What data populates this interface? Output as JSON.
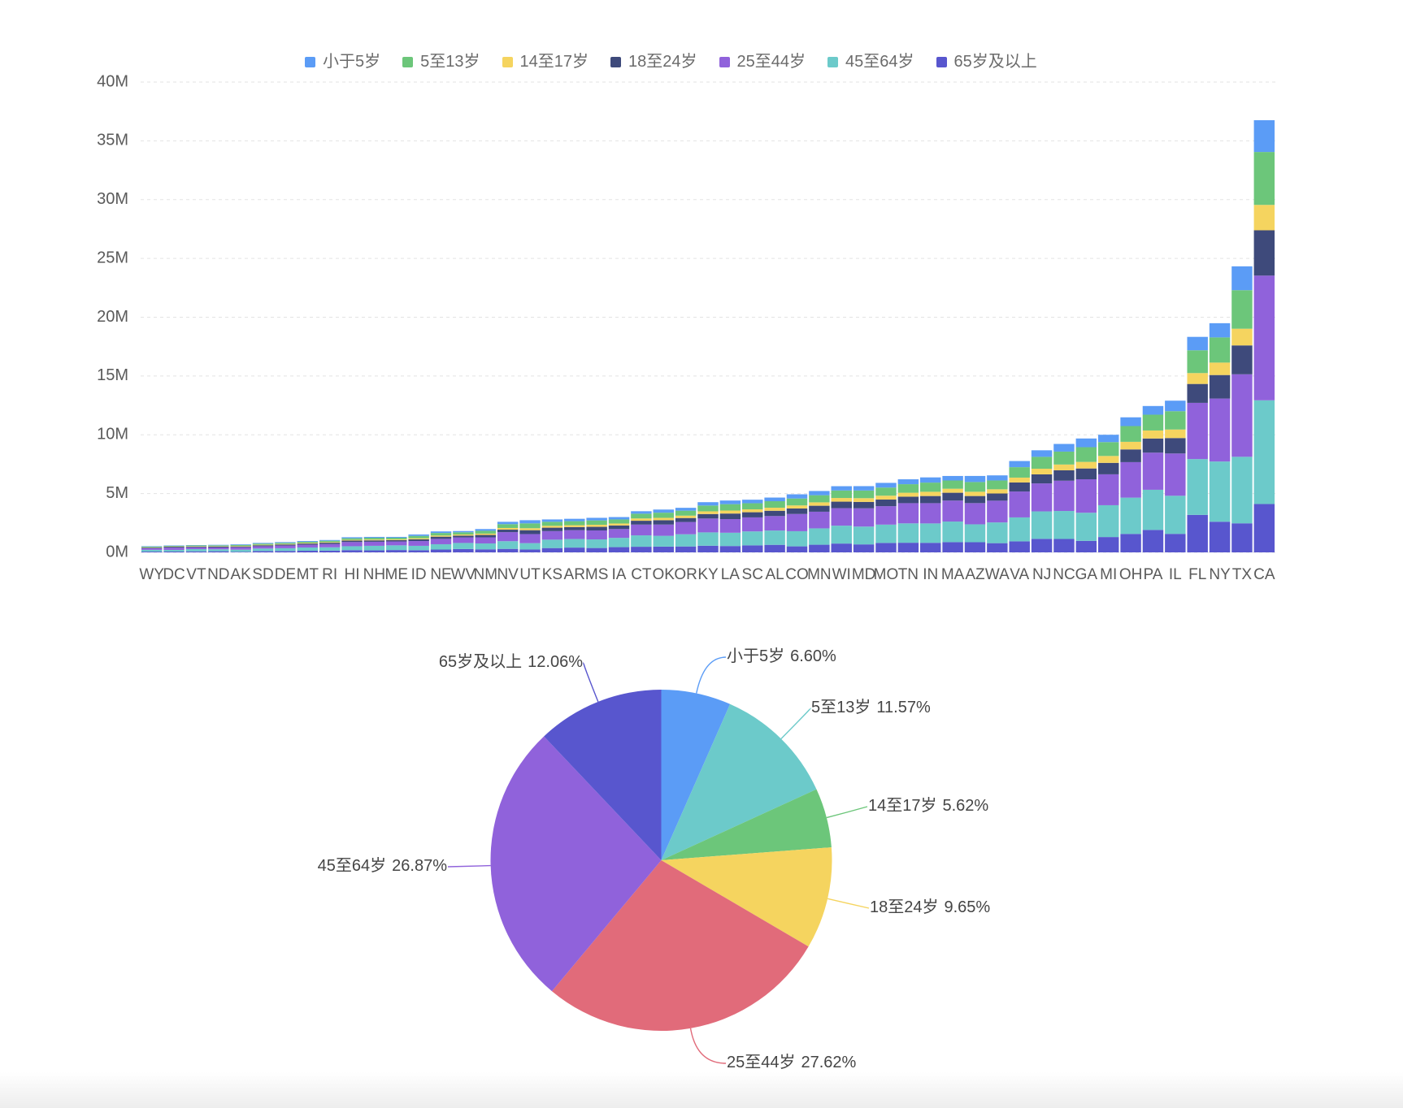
{
  "chart_data": [
    {
      "type": "bar",
      "stacked": true,
      "categories": [
        "WY",
        "DC",
        "VT",
        "ND",
        "AK",
        "SD",
        "DE",
        "MT",
        "RI",
        "HI",
        "NH",
        "ME",
        "ID",
        "NE",
        "WV",
        "NM",
        "NV",
        "UT",
        "KS",
        "AR",
        "MS",
        "IA",
        "CT",
        "OK",
        "OR",
        "KY",
        "LA",
        "SC",
        "AL",
        "CO",
        "MN",
        "WI",
        "MD",
        "MO",
        "TN",
        "IN",
        "MA",
        "AZ",
        "WA",
        "VA",
        "NJ",
        "NC",
        "GA",
        "MI",
        "OH",
        "PA",
        "IL",
        "FL",
        "NY",
        "TX",
        "CA"
      ],
      "series": [
        {
          "name": "小于5岁",
          "color": "#5B9CF6",
          "values": [
            38253,
            36352,
            32635,
            41896,
            52083,
            58566,
            59319,
            61114,
            60934,
            87207,
            75297,
            71459,
            121746,
            132092,
            105435,
            148323,
            199175,
            268916,
            202529,
            202070,
            220813,
            201321,
            211637,
            266547,
            243483,
            284601,
            310716,
            303024,
            310504,
            358280,
            358471,
            362277,
            371787,
            399450,
            416334,
            443089,
            383568,
            515910,
            433119,
            522672,
            557421,
            652823,
            740521,
            625526,
            743750,
            737462,
            894368,
            1140516,
            1208495,
            2027307,
            2704659
          ]
        },
        {
          "name": "5至13岁",
          "color": "#6CC67A",
          "values": [
            60890,
            50439,
            62538,
            67358,
            85640,
            94438,
            99496,
            106088,
            111408,
            134025,
            144235,
            133656,
            201192,
            215265,
            189649,
            241326,
            325650,
            413034,
            342134,
            343207,
            371502,
            345409,
            403658,
            438926,
            424167,
            493536,
            542341,
            517803,
            552339,
            587154,
            606802,
            640286,
            651923,
            690476,
            725948,
            780199,
            701752,
            828669,
            750274,
            887525,
            1011656,
            1097890,
            1250460,
            1179503,
            1340492,
            1345341,
            1558919,
            1938695,
            2141490,
            3277946,
            4499890
          ]
        },
        {
          "name": "14至17岁",
          "color": "#F5D45F",
          "values": [
            29314,
            25225,
            33757,
            33794,
            42153,
            45305,
            47414,
            53156,
            56198,
            64011,
            73826,
            69752,
            89702,
            99638,
            91074,
            112801,
            142976,
            167685,
            155822,
            157204,
            174405,
            165883,
            196918,
            200562,
            199925,
            229927,
            254916,
            245400,
            259034,
            261701,
            289371,
            311849,
            316873,
            331543,
            336312,
            361393,
            341713,
            362642,
            357782,
            413004,
            478505,
            492964,
            557860,
            585169,
            646135,
            679201,
            725973,
            925060,
            1058031,
            1420518,
            2159981
          ]
        },
        {
          "name": "18至24岁",
          "color": "#3E4A7B",
          "values": [
            53980,
            75569,
            61679,
            82629,
            74257,
            82869,
            84464,
            95232,
            114502,
            124834,
            119114,
            112682,
            147606,
            186657,
            157989,
            203097,
            212379,
            329585,
            293114,
            264160,
            305964,
            306398,
            325110,
            369916,
            338162,
            381394,
            471275,
            438147,
            450818,
            466194,
            507289,
            553914,
            543470,
            560463,
            550612,
            605863,
            665879,
            601943,
            610378,
            768475,
            769321,
            883397,
            919876,
            974480,
            1081734,
            1203944,
            1311479,
            1607297,
            1999120,
            2454721,
            3853788
          ]
        },
        {
          "name": "25至44岁",
          "color": "#9062DB",
          "values": [
            137338,
            193557,
            155419,
            154913,
            198724,
            196738,
            230183,
            236297,
            277779,
            356237,
            345109,
            331809,
            406247,
            457177,
            470749,
            517154,
            769913,
            772024,
            728166,
            754420,
            764203,
            750505,
            916955,
            957085,
            1044056,
            1179637,
            1162463,
            1193112,
            1231572,
            1464939,
            1416063,
            1487457,
            1556225,
            1569626,
            1719433,
            1724528,
            1782449,
            1804762,
            1850983,
            2203286,
            2379649,
            2575603,
            2846985,
            2628322,
            3019147,
            3157759,
            3596343,
            4782119,
            5355235,
            7017731,
            10604510
          ]
        },
        {
          "name": "45至64岁",
          "color": "#6CCACA",
          "values": [
            147279,
            140043,
            188593,
            166615,
            183159,
            210178,
            230528,
            278241,
            282321,
            331817,
            388250,
            397911,
            375173,
            451756,
            514505,
            501604,
            653357,
            538978,
            713663,
            727124,
            730133,
            788485,
            968967,
            918688,
            1036269,
            1134283,
            1128771,
            1186019,
            1215966,
            1290094,
            1391878,
            1522038,
            1513754,
            1554812,
            1646623,
            1647881,
            1751508,
            1523681,
            1762811,
            2033550,
            2335168,
            2380685,
            2389018,
            2706100,
            3083815,
            3414001,
            3239173,
            4746856,
            5120254,
            5656528,
            8819342
          ]
        },
        {
          "name": "65岁及以上",
          "color": "#5856CE",
          "values": [
            65614,
            70648,
            86649,
            94276,
            50277,
            116100,
            121688,
            137312,
            147646,
            190067,
            169978,
            199187,
            182150,
            240847,
            285067,
            260051,
            296717,
            246202,
            366706,
            407205,
            371598,
            444554,
            478007,
            490637,
            503998,
            565867,
            540314,
            596295,
            641667,
            511094,
            650519,
            750146,
            679565,
            805235,
            819626,
            813839,
            871098,
            862573,
            783877,
            940577,
            1150941,
            1139052,
            981024,
            1304322,
            1570837,
            1910571,
            1575308,
            3187797,
            2607672,
            2472223,
            4114496
          ]
        }
      ],
      "ylim": [
        0,
        40000000
      ],
      "yticks": [
        0,
        5000000,
        10000000,
        15000000,
        20000000,
        25000000,
        30000000,
        35000000,
        40000000
      ],
      "ytick_labels": [
        "0M",
        "5M",
        "10M",
        "15M",
        "20M",
        "25M",
        "30M",
        "35M",
        "40M"
      ],
      "grid": true,
      "legend_position": "top"
    },
    {
      "type": "pie",
      "categories": [
        "小于5岁",
        "5至13岁",
        "14至17岁",
        "18至24岁",
        "25至44岁",
        "45至64岁",
        "65岁及以上"
      ],
      "values": [
        6.6,
        11.57,
        5.62,
        9.65,
        27.62,
        26.87,
        12.06
      ],
      "value_labels": [
        "6.60%",
        "11.57%",
        "5.62%",
        "9.65%",
        "27.62%",
        "26.87%",
        "12.06%"
      ],
      "colors": [
        "#5B9CF6",
        "#6CCACA",
        "#6CC67A",
        "#F5D45F",
        "#E16B7A",
        "#9062DB",
        "#5856CE"
      ],
      "start": "top",
      "direction": "clockwise"
    }
  ]
}
